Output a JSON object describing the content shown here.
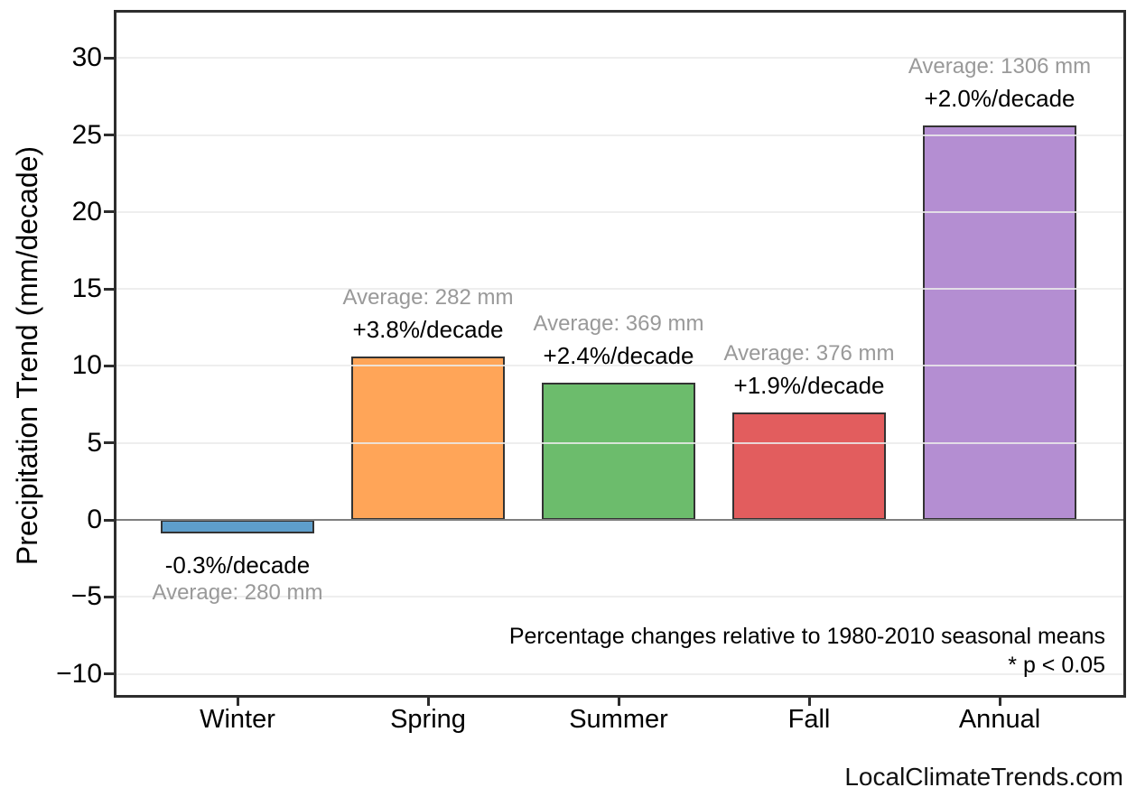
{
  "page": {
    "background": "#ffffff",
    "watermark": "LocalClimateTrends.com"
  },
  "chart_data": {
    "type": "bar",
    "title": "",
    "xlabel": "",
    "ylabel": "Precipitation Trend (mm/decade)",
    "categories": [
      "Winter",
      "Spring",
      "Summer",
      "Fall",
      "Annual"
    ],
    "values": [
      -0.9,
      10.6,
      8.9,
      7.0,
      25.6
    ],
    "bars": [
      {
        "category": "Winter",
        "value": -0.9,
        "pct_label": "-0.3%/decade",
        "avg_label": "Average: 280 mm",
        "color": "#5E9ECB",
        "labels_position": "below"
      },
      {
        "category": "Spring",
        "value": 10.6,
        "pct_label": "+3.8%/decade",
        "avg_label": "Average: 282 mm",
        "color": "#FFA558",
        "labels_position": "above"
      },
      {
        "category": "Summer",
        "value": 8.9,
        "pct_label": "+2.4%/decade",
        "avg_label": "Average: 369 mm",
        "color": "#6CBC6C",
        "labels_position": "above"
      },
      {
        "category": "Fall",
        "value": 7.0,
        "pct_label": "+1.9%/decade",
        "avg_label": "Average: 376 mm",
        "color": "#E25D5E",
        "labels_position": "above"
      },
      {
        "category": "Annual",
        "value": 25.6,
        "pct_label": "+2.0%/decade",
        "avg_label": "Average: 1306 mm",
        "color": "#B48ED2",
        "labels_position": "above"
      }
    ],
    "yticks": [
      {
        "value": -10,
        "label": "−10"
      },
      {
        "value": -5,
        "label": "−5"
      },
      {
        "value": 0,
        "label": "0"
      },
      {
        "value": 5,
        "label": "5"
      },
      {
        "value": 10,
        "label": "10"
      },
      {
        "value": 15,
        "label": "15"
      },
      {
        "value": 20,
        "label": "20"
      },
      {
        "value": 25,
        "label": "25"
      },
      {
        "value": 30,
        "label": "30"
      }
    ],
    "ylim": [
      -11.3,
      32.9
    ],
    "grid": true,
    "legend": false,
    "colors": {
      "gridline": "rgba(235,235,235,0.85)",
      "zero_line": "#7f7f7f",
      "bar_edge": "#333333",
      "avg_label_text": "#999999",
      "pct_label_text": "#000000",
      "axis_text": "#000000",
      "spine": "#2d2d2d"
    },
    "notes": [
      "Percentage changes relative to 1980-2010 seasonal means",
      "* p < 0.05"
    ]
  }
}
